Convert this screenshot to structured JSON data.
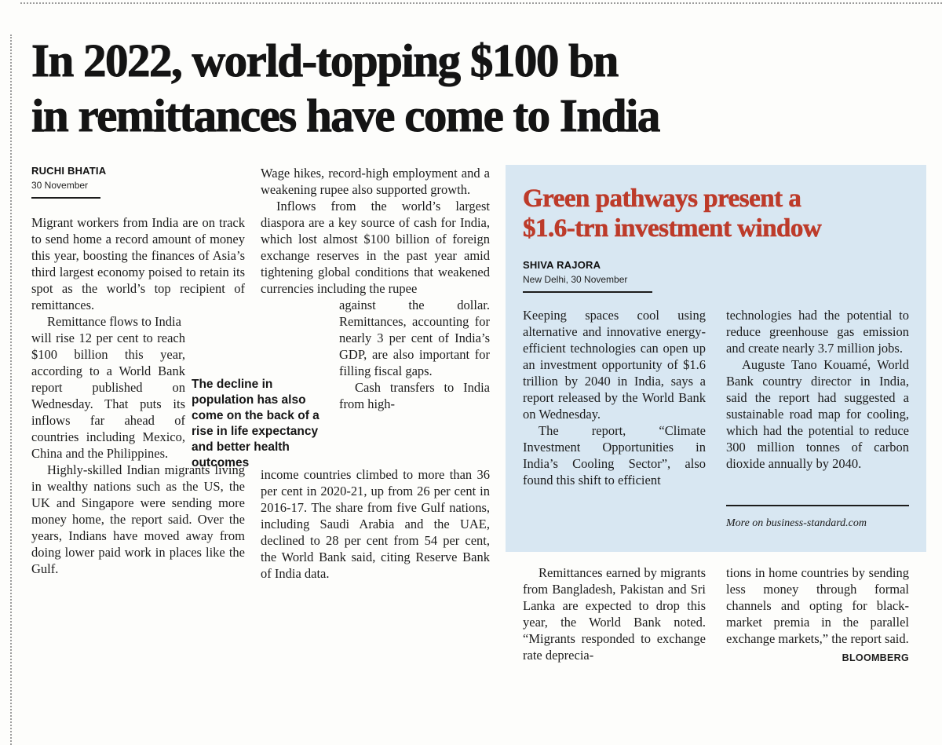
{
  "colors": {
    "accent_red": "#bd3b2a",
    "box_blue": "#d8e7f2",
    "text": "#1c1c1c"
  },
  "article": {
    "headline_line1": "In 2022, world-topping $100 bn",
    "headline_line2": "in remittances have come to India",
    "byline": {
      "author": "RUCHI BHATIA",
      "dateline": "30 November"
    },
    "col1": {
      "p1": "Migrant workers from India are on track to send home a record amount of money this year, boosting the finances of Asia’s third largest economy poised to retain its spot as the world’s top recipient of remittances.",
      "p2_lead": "Remittance flows to India",
      "p2_rest": "will rise 12 per cent to reach $100 billion this year, according to a World Bank report published on Wednesday. That puts its inflows far ahead of countries including Mexico, China and the Philippines.",
      "p3": "Highly-skilled Indian migrants living in wealthy nations such as the US, the UK and Singapore were sending more money home, the report said. Over the years, Indians have moved away from doing lower paid work in places like the Gulf."
    },
    "pull_quote": "The decline in population has also come on the back of a rise in life expectancy and better health outcomes",
    "col2": {
      "p1": "Wage hikes, record-high employment and a weakening rupee also supported growth.",
      "p2_top": "Inflows from the world’s largest diaspora are a key source of cash for India, which lost almost $100 billion of foreign exchange reserves in the past year amid tightening global conditions that weakened currencies including the rupee",
      "p2_wrap": "against the dollar. Remittances, accounting for nearly 3 per cent of India’s GDP, are also important for filling fiscal gaps.",
      "p3_wrap": "Cash transfers to India from high-",
      "p3_bottom": "income countries climbed to more than 36 per cent in 2020-21, up from 26 per cent in 2016-17. The share from five Gulf nations, including Saudi Arabia and the UAE, declined to 28 per cent from 54 per cent, the World Bank said, citing Reserve Bank of India data."
    },
    "continuation": {
      "left": "Remittances earned by migrants from Bangladesh, Pakistan and Sri Lanka are expected to drop this year, the World Bank noted. “Migrants responded to exchange rate deprecia-",
      "right": "tions in home countries by sending less money through formal channels and opting for black-market premia in the parallel exchange markets,” the report said.",
      "credit": "BLOOMBERG"
    }
  },
  "green_box": {
    "headline_line1": "Green pathways present a",
    "headline_line2": "$1.6-trn investment window",
    "byline": {
      "author": "SHIVA RAJORA",
      "dateline": "New Delhi, 30 November"
    },
    "col1": {
      "p1": "Keeping spaces cool using alternative and innovative energy-efficient technologies can open up an investment opportunity of $1.6 trillion by 2040 in India, says a report released by the World Bank on Wednesday.",
      "p2": "The report, “Climate Investment Opportunities in India’s Cooling Sector”, also found this shift to efficient"
    },
    "col2": {
      "p1": "technologies had the potential to reduce greenhouse gas emission and create nearly 3.7 million jobs.",
      "p2": "Auguste Tano Kouamé, World Bank country director in India, said the report had suggested a sustainable road map for cooling, which had the potential to reduce 300 million tonnes of carbon dioxide annually by 2040."
    },
    "footer_note": "More on business-standard.com"
  }
}
